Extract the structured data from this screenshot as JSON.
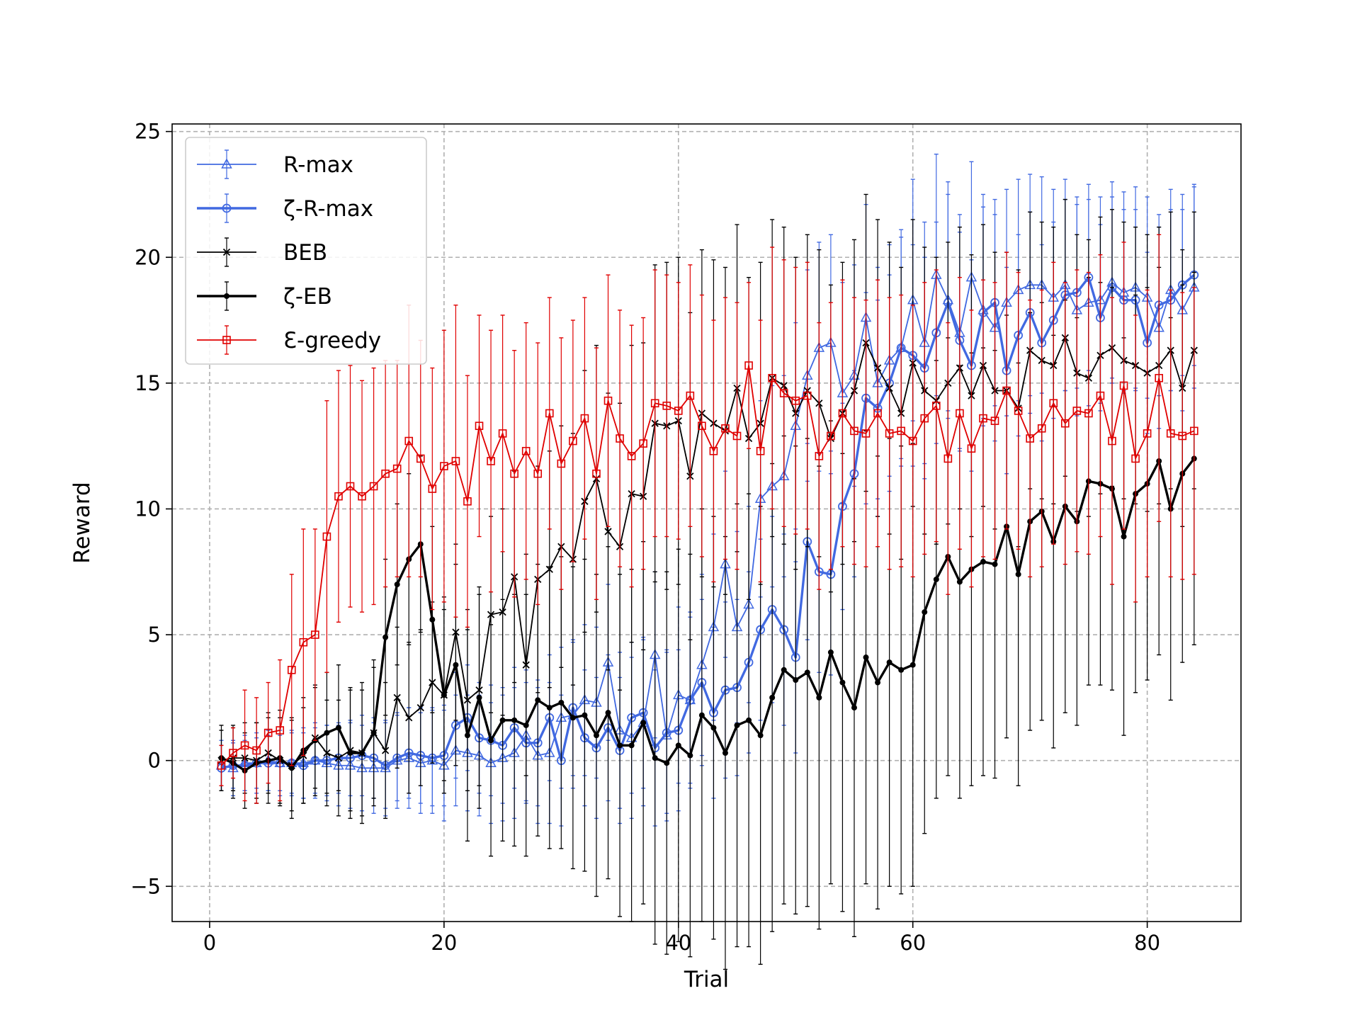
{
  "chart_data": {
    "type": "line",
    "xlabel": "Trial",
    "ylabel": "Reward",
    "xlim": [
      -3.2,
      88
    ],
    "ylim": [
      -6.4,
      25.3
    ],
    "xticks": [
      0,
      20,
      40,
      60,
      80
    ],
    "yticks": [
      -5,
      0,
      5,
      10,
      15,
      20,
      25
    ],
    "xtick_labels": [
      "0",
      "20",
      "40",
      "60",
      "80"
    ],
    "ytick_labels": [
      "−5",
      "0",
      "5",
      "10",
      "15",
      "20",
      "25"
    ],
    "grid": true,
    "legend_position": "upper-left",
    "series": [
      {
        "name": "R-max",
        "color": "#4169e1",
        "marker": "triangle",
        "line_width": 1.4,
        "values": [
          -0.2,
          -0.3,
          -0.1,
          -0.1,
          0.0,
          -0.1,
          -0.1,
          -0.1,
          0.0,
          -0.1,
          -0.2,
          -0.2,
          -0.3,
          -0.3,
          -0.3,
          0.0,
          0.1,
          -0.1,
          0.0,
          -0.2,
          0.4,
          0.3,
          0.2,
          -0.1,
          0.1,
          0.3,
          1.0,
          0.2,
          0.3,
          1.7,
          1.8,
          2.4,
          2.3,
          3.9,
          1.2,
          0.9,
          1.5,
          4.2,
          1.0,
          2.6,
          2.4,
          3.8,
          5.3,
          7.8,
          5.3,
          6.2,
          10.4,
          10.9,
          11.3,
          13.3,
          15.3,
          16.4,
          16.6,
          14.6,
          15.3,
          17.6,
          15.0,
          15.9,
          16.4,
          18.3,
          16.6,
          19.3,
          18.3,
          17.0,
          19.2,
          17.9,
          17.2,
          18.2,
          18.7,
          18.9,
          18.9,
          18.4,
          18.9,
          17.9,
          18.2,
          18.3,
          19.0,
          18.6,
          18.8,
          18.4,
          17.2,
          18.7,
          17.9,
          18.8
        ],
        "errors": [
          1.0,
          1.1,
          1.1,
          1.2,
          1.2,
          1.3,
          1.3,
          1.4,
          1.5,
          1.5,
          1.6,
          1.7,
          1.7,
          1.8,
          1.9,
          1.9,
          2.0,
          2.0,
          2.1,
          2.2,
          2.2,
          2.3,
          2.4,
          2.4,
          2.5,
          2.6,
          2.6,
          2.7,
          2.8,
          2.8,
          2.9,
          3.0,
          3.0,
          3.1,
          3.1,
          3.2,
          3.3,
          3.3,
          3.4,
          3.5,
          3.5,
          3.6,
          3.7,
          3.7,
          3.8,
          3.9,
          3.9,
          4.0,
          4.0,
          4.1,
          4.2,
          4.2,
          4.3,
          4.4,
          4.4,
          4.5,
          4.6,
          4.6,
          4.7,
          4.8,
          4.8,
          4.8,
          4.7,
          4.7,
          4.6,
          4.6,
          4.5,
          4.5,
          4.4,
          4.4,
          4.3,
          4.3,
          4.2,
          4.2,
          4.1,
          4.1,
          4.0,
          4.0,
          4.0,
          4.0,
          4.0,
          4.0,
          4.0,
          4.0
        ]
      },
      {
        "name": "ζ-R-max",
        "color": "#4169e1",
        "marker": "circle",
        "line_width": 2.6,
        "values": [
          -0.3,
          -0.2,
          -0.2,
          -0.1,
          -0.1,
          -0.1,
          -0.1,
          -0.2,
          0.0,
          0.0,
          0.1,
          0.1,
          0.2,
          0.1,
          -0.2,
          0.1,
          0.3,
          0.2,
          0.1,
          0.2,
          1.4,
          1.7,
          0.9,
          0.8,
          0.6,
          1.3,
          0.7,
          0.7,
          1.7,
          0.0,
          2.1,
          0.9,
          0.5,
          1.3,
          0.4,
          1.7,
          1.9,
          0.5,
          1.1,
          1.2,
          2.4,
          3.1,
          1.9,
          2.8,
          2.9,
          3.9,
          5.2,
          6.0,
          5.2,
          4.1,
          8.7,
          7.5,
          7.4,
          10.1,
          11.4,
          14.4,
          14.0,
          15.0,
          16.4,
          16.1,
          15.6,
          17.0,
          18.2,
          16.7,
          15.7,
          17.8,
          18.2,
          15.5,
          16.9,
          17.8,
          16.6,
          17.5,
          18.5,
          18.6,
          19.2,
          17.6,
          18.8,
          18.3,
          18.3,
          16.6,
          18.1,
          18.3,
          18.9,
          19.3
        ],
        "errors": [
          0.9,
          0.9,
          1.0,
          1.0,
          1.1,
          1.1,
          1.2,
          1.3,
          1.3,
          1.4,
          1.4,
          1.5,
          1.6,
          1.6,
          1.7,
          1.7,
          1.8,
          1.9,
          1.9,
          2.0,
          2.1,
          2.1,
          2.2,
          2.2,
          2.3,
          2.4,
          2.4,
          2.5,
          2.5,
          2.6,
          2.7,
          2.7,
          2.8,
          2.9,
          2.9,
          3.0,
          3.0,
          3.1,
          3.2,
          3.2,
          3.3,
          3.3,
          3.4,
          3.5,
          3.5,
          3.6,
          3.6,
          3.7,
          3.8,
          3.8,
          3.9,
          4.0,
          4.0,
          4.1,
          4.1,
          4.2,
          4.3,
          4.3,
          4.4,
          4.4,
          4.4,
          4.4,
          4.3,
          4.3,
          4.2,
          4.2,
          4.1,
          4.1,
          4.0,
          4.0,
          3.9,
          3.9,
          3.8,
          3.8,
          3.7,
          3.7,
          3.6,
          3.6,
          3.6,
          3.6,
          3.6,
          3.6,
          3.6,
          3.6
        ]
      },
      {
        "name": "BEB",
        "color": "#000000",
        "marker": "x",
        "line_width": 1.4,
        "values": [
          0.0,
          0.1,
          0.1,
          0.0,
          0.3,
          0.0,
          -0.2,
          0.2,
          0.9,
          0.3,
          0.1,
          0.4,
          0.3,
          1.1,
          0.4,
          2.5,
          1.7,
          2.1,
          3.1,
          2.6,
          5.1,
          2.4,
          2.8,
          5.8,
          5.9,
          7.3,
          3.8,
          7.2,
          7.6,
          8.5,
          8.0,
          10.3,
          11.2,
          9.1,
          8.5,
          10.6,
          10.5,
          13.4,
          13.3,
          13.5,
          11.3,
          13.8,
          13.4,
          13.1,
          14.8,
          12.8,
          13.4,
          15.2,
          14.9,
          13.8,
          14.7,
          14.2,
          12.8,
          13.8,
          14.7,
          16.6,
          15.6,
          14.8,
          13.8,
          15.8,
          14.7,
          14.3,
          15.0,
          15.6,
          14.5,
          15.7,
          14.7,
          14.7,
          14.0,
          16.3,
          15.9,
          15.7,
          16.8,
          15.4,
          15.2,
          16.1,
          16.4,
          15.9,
          15.7,
          15.4,
          15.7,
          16.3,
          14.8,
          16.3
        ],
        "errors": [
          1.2,
          1.3,
          1.4,
          1.5,
          1.6,
          1.7,
          1.8,
          1.9,
          2.0,
          2.1,
          2.3,
          2.4,
          2.5,
          2.6,
          2.7,
          2.8,
          3.0,
          3.1,
          3.2,
          3.4,
          3.5,
          3.6,
          3.8,
          3.9,
          4.1,
          4.2,
          4.4,
          4.5,
          4.7,
          4.8,
          5.0,
          5.2,
          5.3,
          5.5,
          5.7,
          5.9,
          6.1,
          6.3,
          6.5,
          6.5,
          6.5,
          6.5,
          6.5,
          6.5,
          6.5,
          6.4,
          6.4,
          6.3,
          6.3,
          6.2,
          6.2,
          6.1,
          6.1,
          6.0,
          6.0,
          5.9,
          5.9,
          5.8,
          5.8,
          5.7,
          5.7,
          5.7,
          5.6,
          5.6,
          5.6,
          5.6,
          5.5,
          5.5,
          5.5,
          5.5,
          5.5,
          5.5,
          5.5,
          5.5,
          5.5,
          5.5,
          5.5,
          5.5,
          5.5,
          5.5,
          5.5,
          5.5,
          5.5,
          5.5
        ]
      },
      {
        "name": "ζ-EB",
        "color": "#000000",
        "marker": "dot",
        "line_width": 2.6,
        "values": [
          0.1,
          -0.1,
          -0.4,
          -0.1,
          0.0,
          0.1,
          -0.3,
          0.4,
          0.8,
          1.1,
          1.3,
          0.3,
          0.3,
          1.1,
          4.9,
          7.0,
          8.0,
          8.6,
          5.6,
          2.6,
          3.8,
          1.0,
          2.5,
          0.8,
          1.6,
          1.6,
          1.4,
          2.4,
          2.1,
          2.3,
          1.7,
          1.8,
          1.0,
          1.9,
          0.6,
          0.6,
          1.5,
          0.1,
          -0.1,
          0.6,
          0.2,
          1.8,
          1.3,
          0.3,
          1.4,
          1.6,
          1.0,
          2.5,
          3.6,
          3.2,
          3.5,
          2.5,
          4.3,
          3.1,
          2.1,
          4.1,
          3.1,
          3.9,
          3.6,
          3.8,
          5.9,
          7.2,
          8.1,
          7.1,
          7.6,
          7.9,
          7.8,
          9.3,
          7.4,
          9.5,
          9.9,
          8.7,
          10.1,
          9.5,
          11.1,
          11.0,
          10.8,
          8.9,
          10.6,
          11.0,
          11.9,
          10.0,
          11.4,
          12.0
        ],
        "errors": [
          1.3,
          1.4,
          1.5,
          1.6,
          1.7,
          1.9,
          2.0,
          2.1,
          2.2,
          2.4,
          2.5,
          2.6,
          2.8,
          2.9,
          3.1,
          3.2,
          3.4,
          3.5,
          3.7,
          3.9,
          4.0,
          4.2,
          4.4,
          4.6,
          4.8,
          5.0,
          5.2,
          5.4,
          5.6,
          5.8,
          6.0,
          6.2,
          6.4,
          6.6,
          6.8,
          7.0,
          7.2,
          7.4,
          7.6,
          7.8,
          8.0,
          8.2,
          8.4,
          8.6,
          8.8,
          9.0,
          9.1,
          9.3,
          9.3,
          9.3,
          9.3,
          9.2,
          9.2,
          9.1,
          9.1,
          9.0,
          9.0,
          8.9,
          8.9,
          8.8,
          8.8,
          8.7,
          8.7,
          8.6,
          8.6,
          8.5,
          8.5,
          8.4,
          8.4,
          8.3,
          8.3,
          8.2,
          8.2,
          8.1,
          8.1,
          8.0,
          8.0,
          7.9,
          7.9,
          7.8,
          7.7,
          7.6,
          7.5,
          7.4
        ]
      },
      {
        "name": "Ɛ-greedy",
        "color": "#e00000",
        "marker": "square",
        "line_width": 1.4,
        "values": [
          -0.2,
          0.3,
          0.6,
          0.4,
          1.1,
          1.2,
          3.6,
          4.7,
          5.0,
          8.9,
          10.5,
          10.9,
          10.5,
          10.9,
          11.4,
          11.6,
          12.7,
          12.0,
          10.8,
          11.7,
          11.9,
          10.3,
          13.3,
          11.9,
          13.0,
          11.4,
          12.3,
          11.4,
          13.8,
          11.8,
          12.7,
          13.6,
          11.4,
          14.3,
          12.8,
          12.1,
          12.6,
          14.2,
          14.1,
          13.9,
          14.5,
          13.3,
          12.3,
          13.2,
          12.9,
          15.7,
          12.3,
          15.2,
          14.6,
          14.3,
          14.5,
          12.1,
          12.9,
          13.8,
          13.1,
          13.0,
          13.8,
          13.0,
          13.1,
          12.7,
          13.6,
          14.1,
          12.0,
          13.8,
          12.4,
          13.6,
          13.5,
          14.7,
          13.9,
          12.8,
          13.2,
          14.2,
          13.4,
          13.9,
          13.8,
          14.5,
          12.7,
          14.9,
          12.0,
          13.0,
          15.2,
          13.0,
          12.9,
          13.1
        ],
        "errors": [
          0.8,
          1.0,
          2.2,
          2.1,
          2.0,
          2.8,
          3.8,
          4.5,
          4.2,
          5.4,
          5.0,
          4.8,
          4.6,
          4.7,
          4.5,
          4.3,
          5.4,
          4.7,
          4.8,
          5.4,
          6.2,
          5.0,
          4.4,
          5.2,
          4.7,
          4.9,
          5.1,
          5.2,
          4.6,
          5.0,
          4.8,
          4.8,
          5.0,
          5.0,
          5.1,
          5.2,
          5.0,
          5.3,
          5.2,
          5.1,
          5.2,
          5.2,
          5.2,
          5.2,
          5.3,
          3.3,
          5.2,
          5.2,
          5.3,
          5.3,
          5.3,
          5.3,
          5.3,
          5.3,
          5.3,
          5.3,
          5.3,
          5.4,
          5.4,
          5.4,
          5.4,
          5.4,
          5.4,
          5.4,
          5.5,
          5.5,
          5.5,
          5.5,
          5.5,
          5.5,
          5.5,
          5.6,
          5.6,
          5.6,
          5.6,
          5.6,
          5.7,
          5.7,
          5.7,
          5.7,
          5.7,
          5.7,
          5.7,
          5.7
        ]
      }
    ]
  }
}
